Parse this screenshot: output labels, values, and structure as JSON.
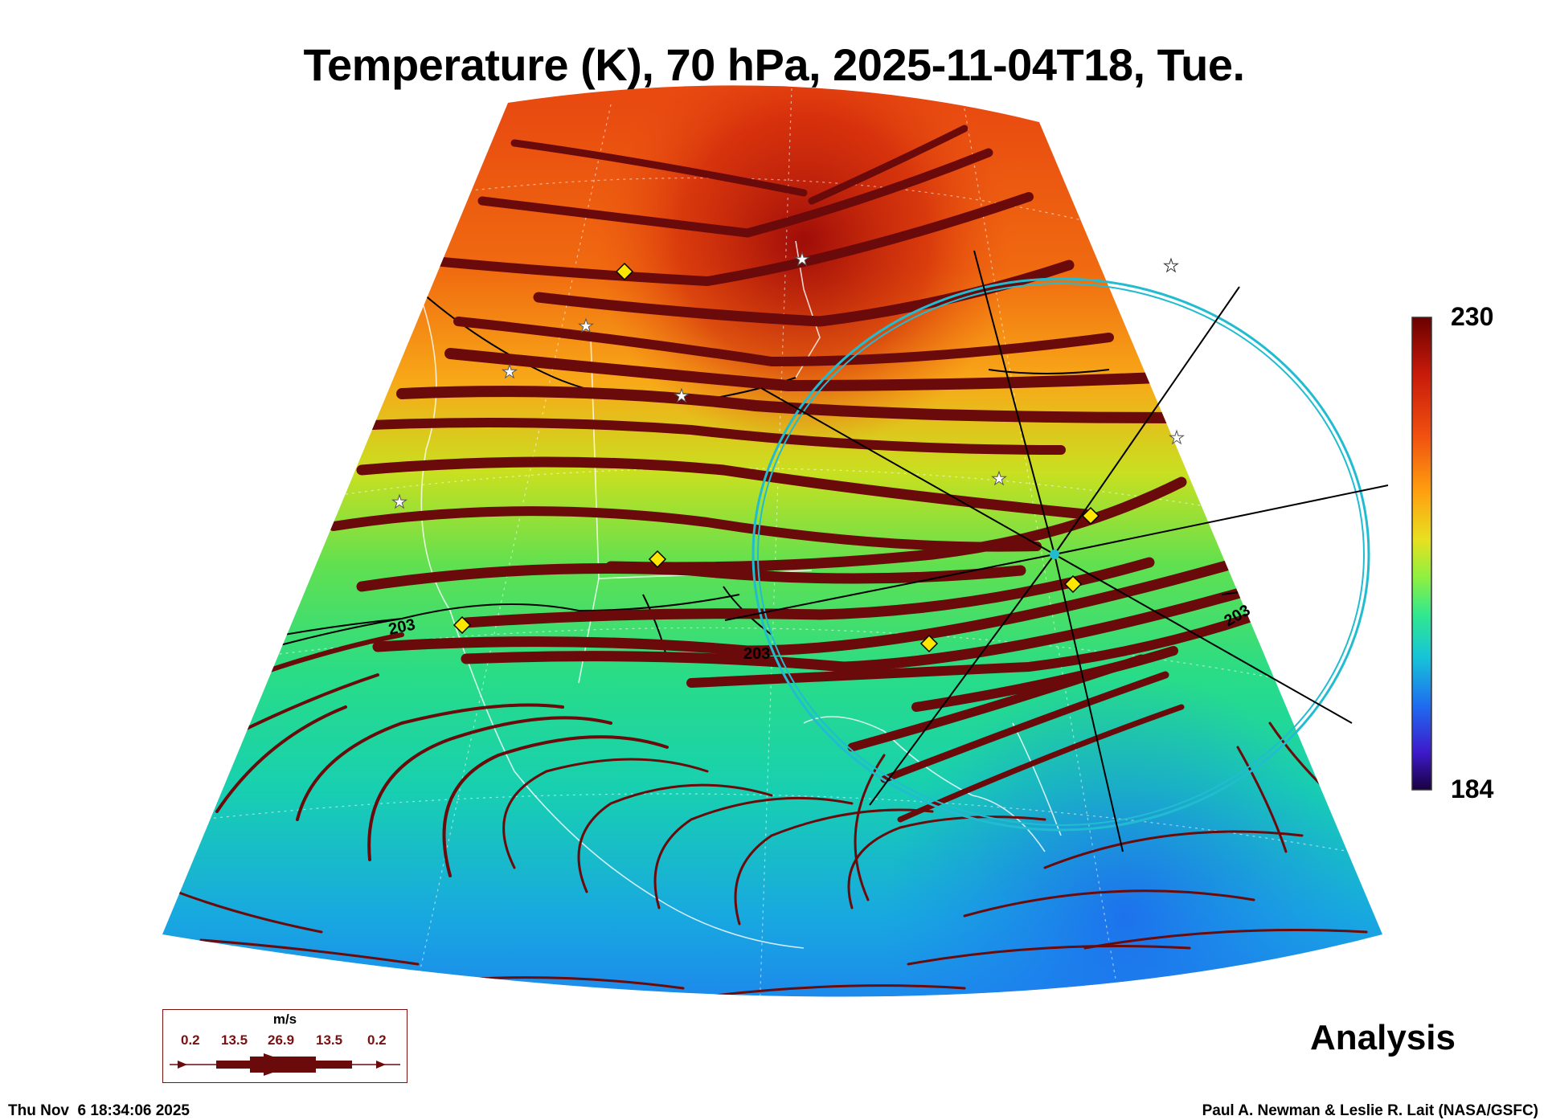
{
  "title": "Temperature (K), 70 hPa, 2025-11-04T18, Tue.",
  "colorbar": {
    "max": "230",
    "min": "184"
  },
  "contour_labels": [
    "203",
    "203",
    "203"
  ],
  "legend": {
    "unit": "m/s",
    "values": [
      "0.2",
      "13.5",
      "26.9",
      "13.5",
      "0.2"
    ]
  },
  "analysis_label": "Analysis",
  "timestamp": "Thu Nov  6 18:34:06 2025",
  "credit": "Paul A. Newman & Leslie R. Lait (NASA/GSFC)",
  "colors": {
    "streamline": "#6b0a0a",
    "circle": "#22bcd0",
    "marker_diamond": "#ffe600",
    "colormap": [
      "#1a0040",
      "#3d1acc",
      "#1e6ef0",
      "#16c4d8",
      "#30e890",
      "#8ef040",
      "#e8e020",
      "#ffa010",
      "#f05010",
      "#c81a0a",
      "#6a0000"
    ]
  }
}
